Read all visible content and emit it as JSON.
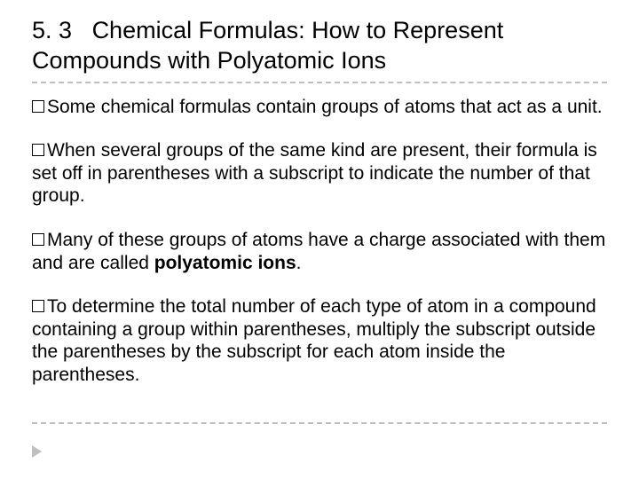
{
  "title": {
    "section_number": "5. 3",
    "section_gap": "   ",
    "text": "Chemical Formulas: How to Represent Compounds with Polyatomic Ions"
  },
  "bullets": [
    {
      "lead": "Some",
      "rest": " chemical formulas contain groups of atoms that act as a unit."
    },
    {
      "lead": "When",
      "rest": " several groups of the same kind are present, their formula is set off in parentheses with a subscript to indicate the number of that group."
    },
    {
      "lead": "Many",
      "rest_pre": " of these groups of atoms have a charge associated with them and are called ",
      "bold": "polyatomic ions",
      "rest_post": "."
    },
    {
      "lead": "To",
      "rest": " determine the total number of each type of atom in a compound containing a group within parentheses, multiply the subscript outside the parentheses by the subscript for each atom inside the parentheses."
    }
  ],
  "style": {
    "title_fontsize": 27,
    "body_fontsize": 21,
    "rule_color": "#bfbfbf",
    "arrow_color": "#bfbfbf",
    "text_color": "#000000",
    "background_color": "#ffffff"
  }
}
